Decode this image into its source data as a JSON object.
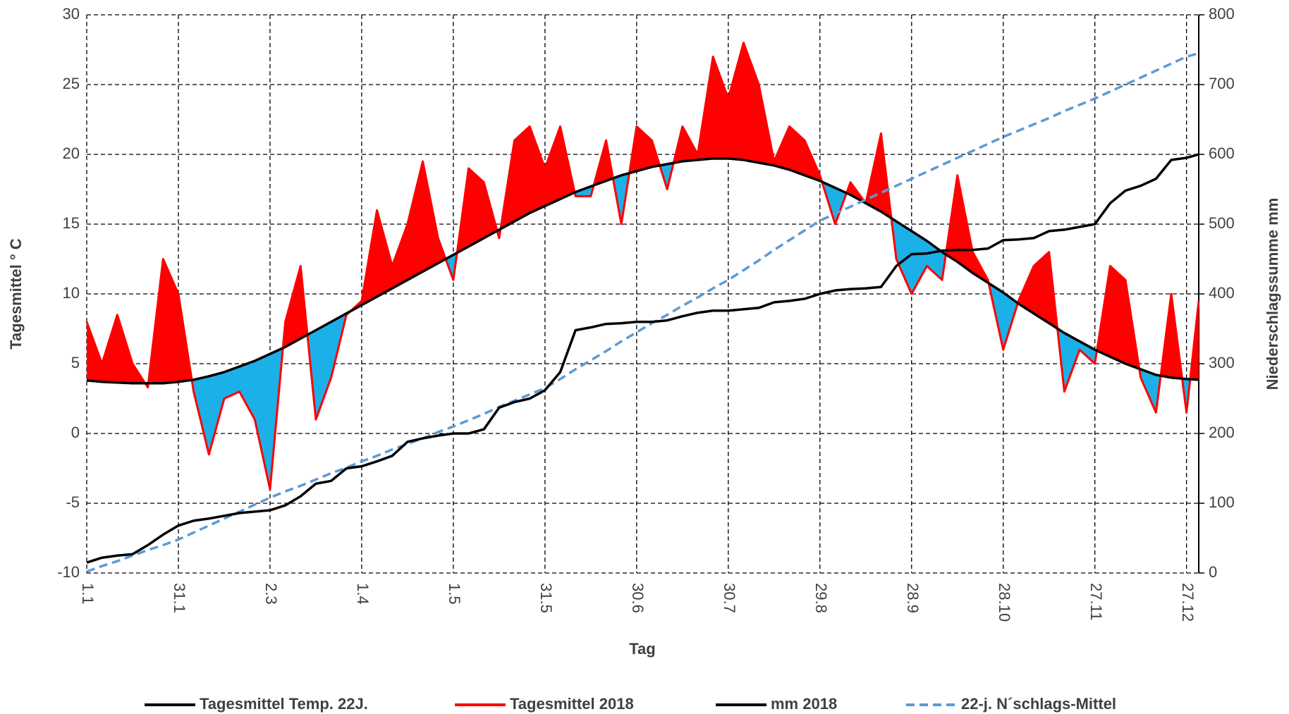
{
  "chart_data": {
    "type": "line",
    "x_label": "Tag",
    "y_label": "Tagesmittel ° C",
    "y2_label": "Niederschlagssumme mm",
    "x": [
      1,
      6,
      11,
      16,
      21,
      26,
      31,
      36,
      41,
      46,
      51,
      56,
      61,
      66,
      71,
      76,
      81,
      86,
      91,
      96,
      101,
      106,
      111,
      116,
      121,
      126,
      131,
      136,
      141,
      146,
      151,
      156,
      161,
      166,
      171,
      176,
      181,
      186,
      191,
      196,
      201,
      206,
      211,
      216,
      221,
      226,
      231,
      236,
      241,
      246,
      251,
      256,
      261,
      266,
      271,
      276,
      281,
      286,
      291,
      296,
      301,
      306,
      311,
      316,
      321,
      326,
      331,
      336,
      341,
      346,
      351,
      356,
      361,
      365
    ],
    "xlim": [
      1,
      365
    ],
    "xticks": [
      {
        "value": 1,
        "label": "1.1"
      },
      {
        "value": 31,
        "label": "31.1"
      },
      {
        "value": 61,
        "label": "2.3"
      },
      {
        "value": 91,
        "label": "1.4"
      },
      {
        "value": 121,
        "label": "1.5"
      },
      {
        "value": 151,
        "label": "31.5"
      },
      {
        "value": 181,
        "label": "30.6"
      },
      {
        "value": 211,
        "label": "30.7"
      },
      {
        "value": 241,
        "label": "29.8"
      },
      {
        "value": 271,
        "label": "28.9"
      },
      {
        "value": 301,
        "label": "28.10"
      },
      {
        "value": 331,
        "label": "27.11"
      },
      {
        "value": 361,
        "label": "27.12"
      }
    ],
    "ylim": [
      -10,
      30
    ],
    "yticks": [
      -10,
      -5,
      0,
      5,
      10,
      15,
      20,
      25,
      30
    ],
    "y2lim": [
      0,
      800
    ],
    "y2ticks": [
      0,
      100,
      200,
      300,
      400,
      500,
      600,
      700,
      800
    ],
    "grid": true,
    "legend": "bottom",
    "above_color": "#ff0000",
    "below_color": "#1cb0e8",
    "series": [
      {
        "name": "Tagesmittel Temp. 22J.",
        "color": "#000000",
        "dash": false,
        "values": [
          3.8,
          3.7,
          3.65,
          3.6,
          3.6,
          3.6,
          3.7,
          3.85,
          4.1,
          4.4,
          4.8,
          5.2,
          5.7,
          6.2,
          6.8,
          7.4,
          8.0,
          8.6,
          9.2,
          9.8,
          10.4,
          11.0,
          11.6,
          12.2,
          12.8,
          13.4,
          14.0,
          14.6,
          15.2,
          15.8,
          16.3,
          16.8,
          17.3,
          17.7,
          18.1,
          18.5,
          18.8,
          19.1,
          19.3,
          19.5,
          19.6,
          19.7,
          19.7,
          19.6,
          19.4,
          19.2,
          18.9,
          18.5,
          18.1,
          17.6,
          17.1,
          16.5,
          15.9,
          15.2,
          14.5,
          13.8,
          13.0,
          12.3,
          11.5,
          10.8,
          10.1,
          9.3,
          8.6,
          7.9,
          7.2,
          6.6,
          6.0,
          5.5,
          5.0,
          4.6,
          4.2,
          4.0,
          3.9,
          3.85
        ]
      },
      {
        "name": "Tagesmittel 2018",
        "color": "#ff0000",
        "dash": false,
        "values": [
          8,
          5,
          8.5,
          5,
          3.3,
          12.5,
          10,
          3,
          -1.5,
          2.5,
          3,
          1,
          -4,
          8,
          12,
          1,
          4,
          8.5,
          9.5,
          16,
          12,
          15,
          19.5,
          14,
          11,
          19,
          18,
          14,
          21,
          22,
          19,
          22,
          17,
          17,
          21,
          15,
          22,
          21,
          17.5,
          22,
          20,
          27,
          24,
          28,
          25,
          19.5,
          22,
          21,
          18.5,
          15,
          18,
          16.5,
          21.5,
          12.5,
          10,
          12,
          11,
          18.5,
          13,
          11,
          6,
          9.5,
          12,
          13,
          3,
          6,
          5,
          12,
          11,
          4,
          1.5,
          10,
          1.5,
          9.5
        ]
      },
      {
        "name": "mm 2018",
        "color": "#000000",
        "dash": false,
        "axis": "y2",
        "values": [
          15,
          22,
          25,
          27,
          40,
          55,
          68,
          75,
          78,
          82,
          86,
          88,
          90,
          97,
          110,
          128,
          132,
          150,
          153,
          160,
          168,
          188,
          193,
          197,
          200,
          200,
          206,
          237,
          245,
          250,
          262,
          288,
          348,
          352,
          357,
          358,
          360,
          360,
          362,
          368,
          373,
          376,
          376,
          378,
          380,
          388,
          390,
          393,
          400,
          405,
          407,
          408,
          410,
          440,
          457,
          458,
          462,
          463,
          463,
          465,
          477,
          478,
          480,
          490,
          492,
          496,
          500,
          530,
          548,
          555,
          565,
          592,
          595,
          600
        ]
      },
      {
        "name": "22-j. N´schlags-Mittel",
        "color": "#5b9bd5",
        "dash": true,
        "axis": "y2",
        "values": [
          2,
          10,
          17,
          25,
          33,
          40,
          48,
          58,
          68,
          78,
          88,
          98,
          108,
          117,
          125,
          134,
          143,
          151,
          160,
          168,
          177,
          185,
          193,
          202,
          210,
          219,
          228,
          238,
          247,
          256,
          265,
          278,
          292,
          305,
          318,
          332,
          345,
          358,
          370,
          383,
          395,
          408,
          420,
          434,
          448,
          463,
          477,
          491,
          505,
          515,
          525,
          535,
          545,
          555,
          565,
          575,
          585,
          595,
          605,
          615,
          625,
          634,
          643,
          652,
          662,
          671,
          680,
          690,
          700,
          710,
          720,
          730,
          740,
          745
        ]
      }
    ]
  }
}
